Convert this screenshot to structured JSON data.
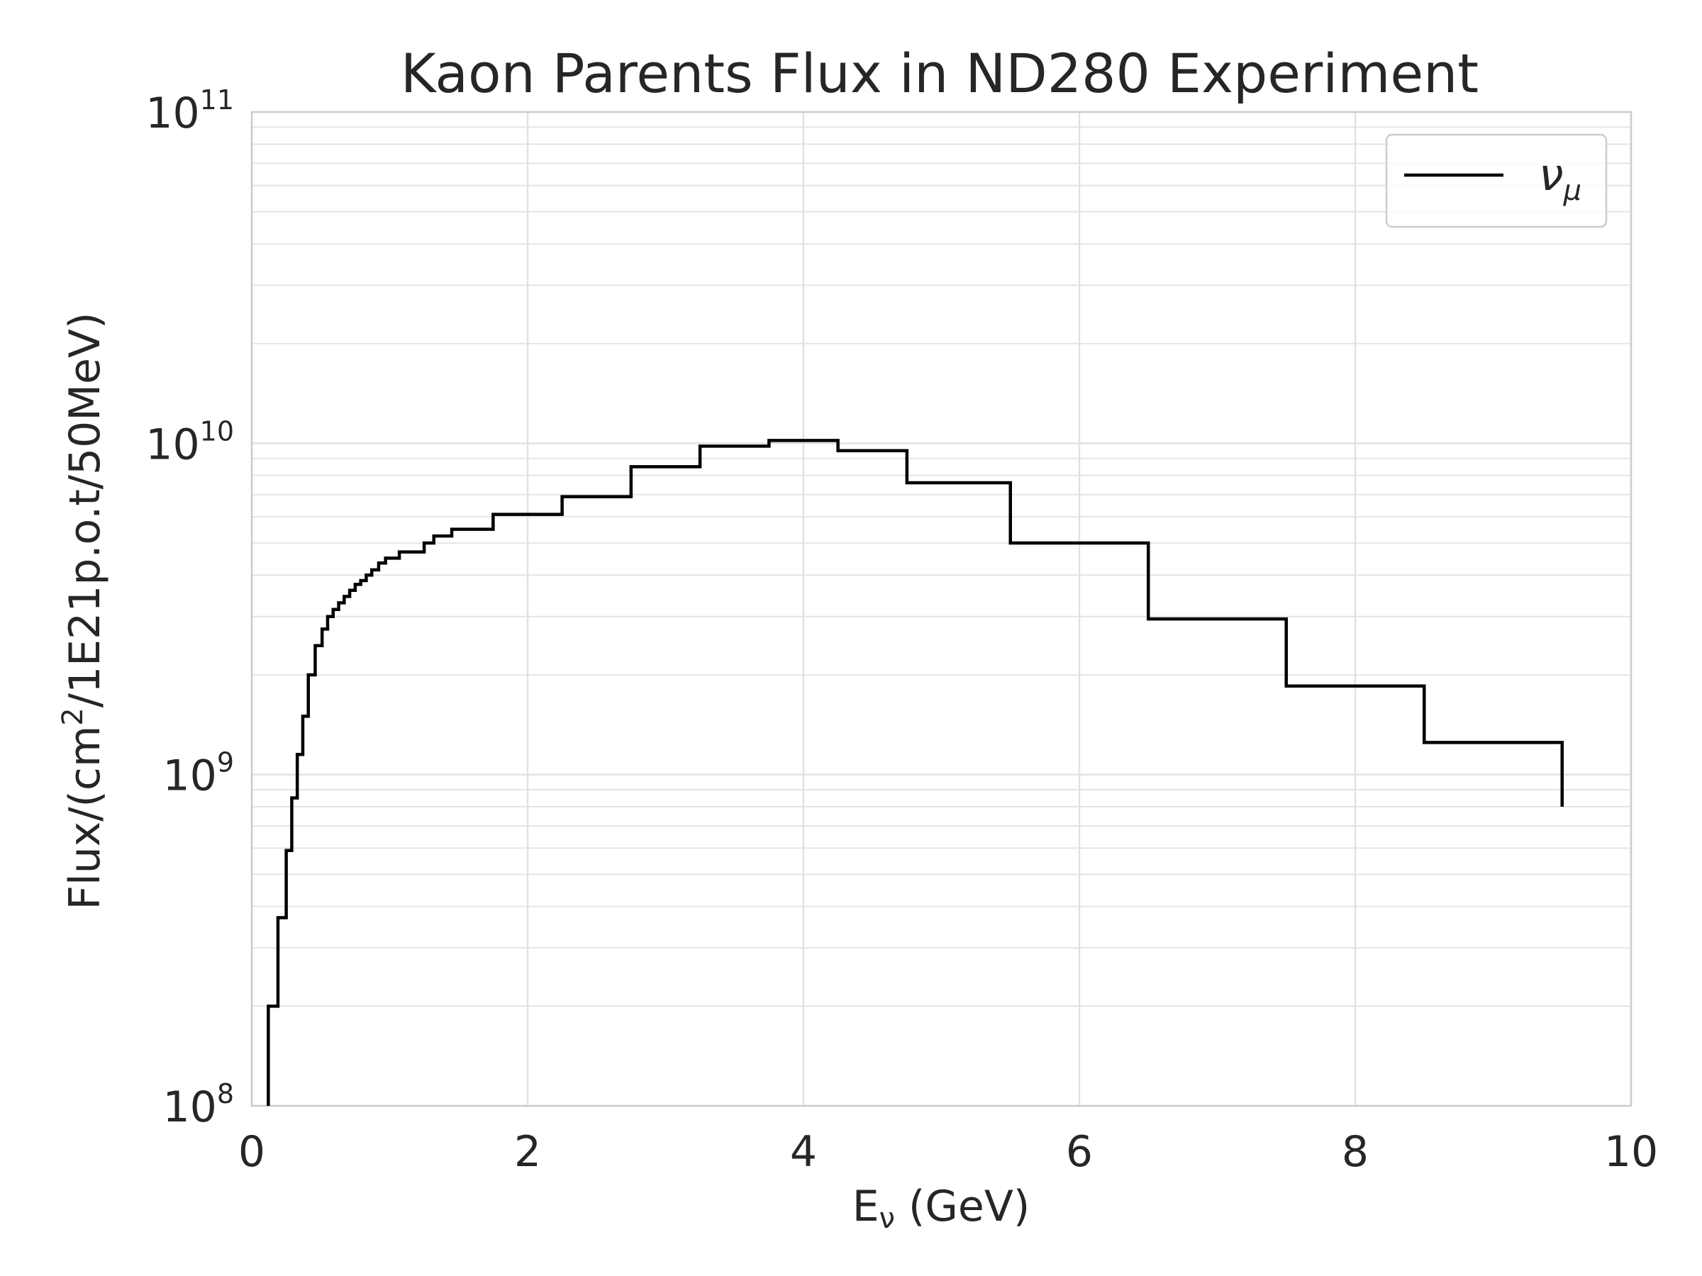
{
  "chart_data": {
    "type": "line",
    "title": "Kaon Parents Flux in ND280 Experiment",
    "xlabel": {
      "main": "E",
      "sub": "ν",
      "suffix": " (GeV)"
    },
    "ylabel": {
      "pre": "Flux/(cm",
      "sup": "2",
      "post": "/1E21p.o.t/50MeV)"
    },
    "xlim": [
      0,
      10
    ],
    "ylim": [
      100000000.0,
      100000000000.0
    ],
    "yscale": "log",
    "grid": true,
    "legend_position": "top-right",
    "x_ticks": [
      "0",
      "2",
      "4",
      "6",
      "8",
      "10"
    ],
    "y_ticks": [
      {
        "base": "10",
        "exp": "8"
      },
      {
        "base": "10",
        "exp": "9"
      },
      {
        "base": "10",
        "exp": "10"
      },
      {
        "base": "10",
        "exp": "11"
      }
    ],
    "series": [
      {
        "name_main": "ν",
        "name_sub": "μ",
        "color": "#000000",
        "drawstyle": "steps-post",
        "x": [
          0.12,
          0.19,
          0.25,
          0.29,
          0.33,
          0.37,
          0.41,
          0.46,
          0.51,
          0.55,
          0.59,
          0.63,
          0.67,
          0.71,
          0.75,
          0.79,
          0.83,
          0.87,
          0.92,
          0.97,
          1.07,
          1.12,
          1.25,
          1.32,
          1.45,
          1.75,
          2.25,
          2.75,
          3.25,
          3.75,
          4.25,
          4.75,
          5.5,
          6.5,
          7.5,
          8.5,
          9.5
        ],
        "y": [
          200000000.0,
          370000000.0,
          590000000.0,
          850000000.0,
          1150000000.0,
          1500000000.0,
          2000000000.0,
          2450000000.0,
          2750000000.0,
          3000000000.0,
          3150000000.0,
          3300000000.0,
          3450000000.0,
          3600000000.0,
          3750000000.0,
          3850000000.0,
          4000000000.0,
          4150000000.0,
          4350000000.0,
          4500000000.0,
          4700000000.0,
          4700000000.0,
          5000000000.0,
          5250000000.0,
          5500000000.0,
          6100000000.0,
          6900000000.0,
          8500000000.0,
          9800000000.0,
          10200000000.0,
          9500000000.0,
          7600000000.0,
          5000000000.0,
          2950000000.0,
          1850000000.0,
          1250000000.0,
          800000000.0
        ]
      }
    ]
  },
  "colors": {
    "line": "#000000",
    "grid": "#e2e2e2",
    "spine": "#cccccc",
    "text": "#262626"
  }
}
